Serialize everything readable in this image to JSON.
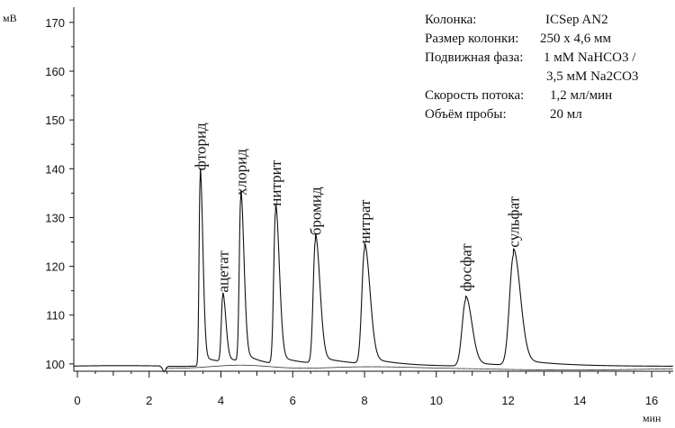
{
  "chart_data": {
    "type": "line",
    "title": "",
    "xlabel": "мин",
    "ylabel": "мВ",
    "xlim": [
      -0.1,
      16.6
    ],
    "ylim": [
      98.5,
      172
    ],
    "x_ticks": [
      0,
      2,
      4,
      6,
      8,
      10,
      12,
      14,
      16
    ],
    "y_ticks": [
      100,
      110,
      120,
      130,
      140,
      150,
      160,
      170
    ],
    "baseline_mV": 99.5,
    "peaks": [
      {
        "name": "фторид",
        "rt": 3.42,
        "height_mV": 137.8,
        "sigma_left": 0.03,
        "sigma_right": 0.075
      },
      {
        "name": "ацетат",
        "rt": 4.05,
        "height_mV": 112.8,
        "sigma_left": 0.04,
        "sigma_right": 0.085
      },
      {
        "name": "хлорид",
        "rt": 4.55,
        "height_mV": 132.7,
        "sigma_left": 0.04,
        "sigma_right": 0.09
      },
      {
        "name": "нитрит",
        "rt": 5.52,
        "height_mV": 130.5,
        "sigma_left": 0.05,
        "sigma_right": 0.105
      },
      {
        "name": "бромид",
        "rt": 6.63,
        "height_mV": 124.5,
        "sigma_left": 0.06,
        "sigma_right": 0.125
      },
      {
        "name": "нитрат",
        "rt": 8.0,
        "height_mV": 122.8,
        "sigma_left": 0.075,
        "sigma_right": 0.15
      },
      {
        "name": "фосфат",
        "rt": 10.82,
        "height_mV": 113.0,
        "sigma_left": 0.1,
        "sigma_right": 0.17
      },
      {
        "name": "сульфат",
        "rt": 12.15,
        "height_mV": 122.0,
        "sigma_left": 0.11,
        "sigma_right": 0.19
      }
    ],
    "annotations": [
      {
        "label": "Колонка:",
        "value": "ICSep AN2"
      },
      {
        "label": "Размер колонки:",
        "value": "250 x 4,6 мм"
      },
      {
        "label": "Подвижная фаза:",
        "value": "1 мМ NaHCO3 /"
      },
      {
        "label": "",
        "value": "3,5 мМ Na2CO3"
      },
      {
        "label": "Скорость потока:",
        "value": "1,2 мл/мин"
      },
      {
        "label": "Объём пробы:",
        "value": "20 мл"
      }
    ]
  },
  "colors": {
    "trace": "#111111",
    "axis": "#111111",
    "background": "#ffffff"
  }
}
